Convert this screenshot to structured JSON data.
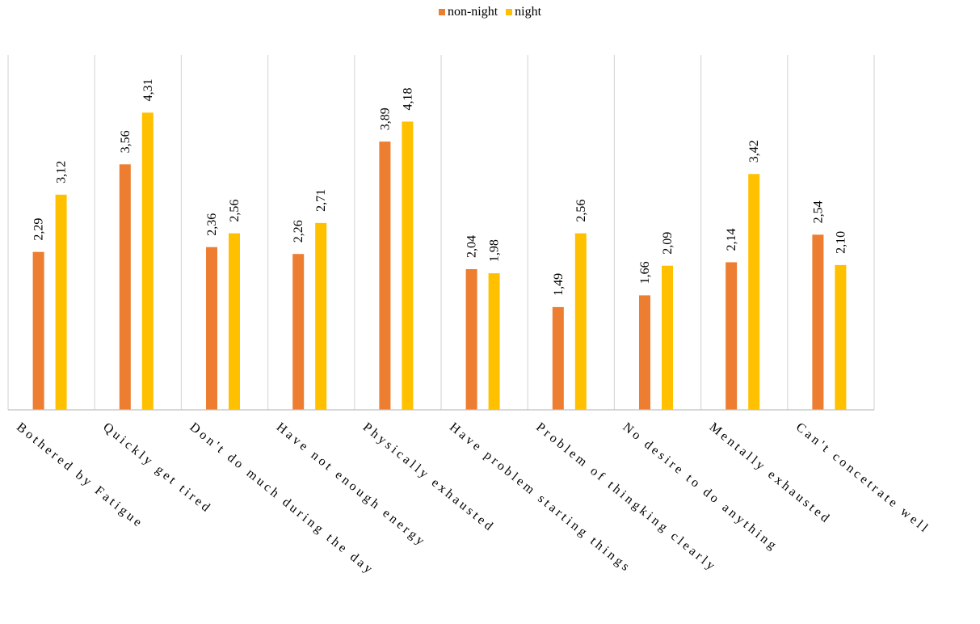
{
  "chart_data": {
    "type": "bar",
    "categories": [
      "Bothered by Fatigue",
      "Quickly get tired",
      "Don't do much during the day",
      "Have not enough energy",
      "Physically exhausted",
      "Have problem starting things",
      "Problem of thingking clearly",
      "No desire to do anything",
      "Mentally exhausted",
      "Can't concetrate well"
    ],
    "series": [
      {
        "name": "non-night",
        "color": "#ED7D31",
        "values": [
          2.29,
          3.56,
          2.36,
          2.26,
          3.89,
          2.04,
          1.49,
          1.66,
          2.14,
          2.54
        ],
        "labels": [
          "2,29",
          "3,56",
          "2,36",
          "2,26",
          "3,89",
          "2,04",
          "1,49",
          "1,66",
          "2,14",
          "2,54"
        ]
      },
      {
        "name": "night",
        "color": "#FFC000",
        "values": [
          3.12,
          4.31,
          2.56,
          2.71,
          4.18,
          1.98,
          2.56,
          2.09,
          3.42,
          2.1
        ],
        "labels": [
          "3,12",
          "4,31",
          "2,56",
          "2,71",
          "4,18",
          "1,98",
          "2,56",
          "2,09",
          "3,42",
          "2,10"
        ]
      }
    ],
    "ylim": [
      0,
      5
    ],
    "grid": "vertical separators",
    "legend": "top-center"
  }
}
